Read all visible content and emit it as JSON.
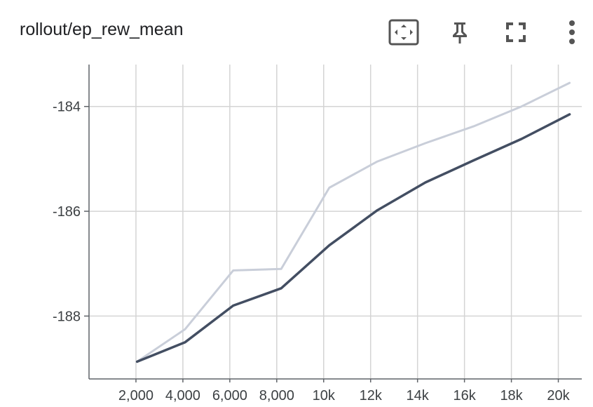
{
  "header": {
    "title": "rollout/ep_rew_mean",
    "tools": [
      {
        "name": "fit-domain-button",
        "icon": "fit-to-data-icon"
      },
      {
        "name": "pin-button",
        "icon": "pin-icon"
      },
      {
        "name": "fullscreen-button",
        "icon": "fullscreen-icon"
      },
      {
        "name": "more-options-button",
        "icon": "more-vert-icon"
      }
    ]
  },
  "colors": {
    "raw_line": "#c9ced9",
    "smoothed_line": "#434e62",
    "grid": "#d4d4d4",
    "axis": "#5f6368",
    "icon": "#555555"
  },
  "chart_data": {
    "type": "line",
    "title": "rollout/ep_rew_mean",
    "xlabel": "",
    "ylabel": "",
    "xlim": [
      0,
      21000
    ],
    "ylim": [
      -189.2,
      -183.2
    ],
    "x_ticks": [
      2000,
      4000,
      6000,
      8000,
      10000,
      12000,
      14000,
      16000,
      18000,
      20000
    ],
    "x_tick_labels": [
      "2,000",
      "4,000",
      "6,000",
      "8,000",
      "10k",
      "12k",
      "14k",
      "16k",
      "18k",
      "20k"
    ],
    "y_ticks": [
      -184,
      -186,
      -188
    ],
    "y_tick_labels": [
      "-184",
      "-186",
      "-188"
    ],
    "grid": true,
    "legend": "none",
    "series": [
      {
        "role": "raw",
        "x": [
          2048,
          4096,
          6144,
          8192,
          10240,
          12288,
          14336,
          16384,
          18432,
          20480
        ],
        "y": [
          -188.87,
          -188.25,
          -187.13,
          -187.1,
          -185.55,
          -185.05,
          -184.7,
          -184.38,
          -184.0,
          -183.55
        ]
      },
      {
        "role": "smoothed",
        "x": [
          2048,
          4096,
          6144,
          8192,
          10240,
          12288,
          14336,
          16384,
          18432,
          20480
        ],
        "y": [
          -188.87,
          -188.5,
          -187.8,
          -187.47,
          -186.65,
          -185.98,
          -185.45,
          -185.03,
          -184.62,
          -184.15
        ]
      }
    ]
  }
}
